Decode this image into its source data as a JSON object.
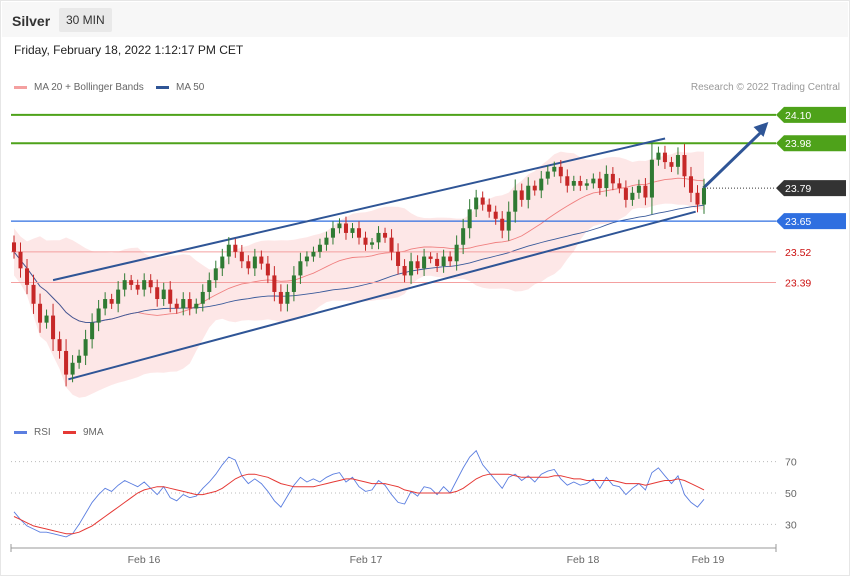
{
  "header": {
    "symbol": "Silver",
    "timeframe": "30 MIN",
    "datetime": "Friday, February 18, 2022 1:12:17 PM CET"
  },
  "legend": {
    "ma20": "MA 20 + Bollinger Bands",
    "ma50": "MA 50",
    "rsi": "RSI",
    "rsi_ma": "9MA"
  },
  "credit": "Research © 2022 Trading Central",
  "colors": {
    "bollinger_fill": "#fde3e3",
    "ma20": "#f08080",
    "ma50": "#3a5a9a",
    "channel": "#2f5596",
    "resistance": "#4ea21a",
    "pivot": "#2f6fe0",
    "support": "#f4a0a0",
    "support_text": "#cc1111",
    "current": "#333333",
    "candle_up": "#2f7a33",
    "candle_down": "#c62828",
    "rsi": "#5b7ee0",
    "rsi_ma": "#e53935"
  },
  "chart_data": [
    {
      "type": "candlestick",
      "title": "Silver",
      "timeframe": "30 MIN",
      "x_tick_labels": [
        "Feb 16",
        "Feb 17",
        "Feb 18",
        "Feb 19"
      ],
      "ylim": [
        22.85,
        24.18
      ],
      "price_levels": [
        {
          "label": "24.10",
          "value": 24.1,
          "kind": "resistance"
        },
        {
          "label": "23.98",
          "value": 23.98,
          "kind": "resistance"
        },
        {
          "label": "23.79",
          "value": 23.79,
          "kind": "current"
        },
        {
          "label": "23.65",
          "value": 23.65,
          "kind": "pivot"
        },
        {
          "label": "23.52",
          "value": 23.52,
          "kind": "support"
        },
        {
          "label": "23.39",
          "value": 23.39,
          "kind": "support"
        }
      ],
      "channel": {
        "upper": [
          [
            0.055,
            23.4
          ],
          [
            0.855,
            24.0
          ]
        ],
        "lower": [
          [
            0.075,
            22.98
          ],
          [
            0.895,
            23.69
          ]
        ]
      },
      "projection": [
        [
          0.905,
          23.79
        ],
        [
          0.99,
          24.07
        ]
      ],
      "closes": [
        23.52,
        23.45,
        23.38,
        23.3,
        23.22,
        23.25,
        23.15,
        23.1,
        23.0,
        23.05,
        23.08,
        23.15,
        23.22,
        23.28,
        23.32,
        23.3,
        23.36,
        23.4,
        23.38,
        23.36,
        23.4,
        23.37,
        23.32,
        23.36,
        23.3,
        23.28,
        23.32,
        23.28,
        23.3,
        23.35,
        23.4,
        23.45,
        23.5,
        23.55,
        23.52,
        23.48,
        23.45,
        23.5,
        23.47,
        23.42,
        23.35,
        23.3,
        23.35,
        23.42,
        23.48,
        23.5,
        23.52,
        23.55,
        23.58,
        23.62,
        23.64,
        23.6,
        23.62,
        23.58,
        23.55,
        23.56,
        23.6,
        23.58,
        23.52,
        23.46,
        23.42,
        23.48,
        23.45,
        23.5,
        23.49,
        23.46,
        23.5,
        23.48,
        23.55,
        23.62,
        23.7,
        23.75,
        23.72,
        23.69,
        23.66,
        23.61,
        23.69,
        23.78,
        23.74,
        23.8,
        23.78,
        23.83,
        23.86,
        23.88,
        23.84,
        23.8,
        23.82,
        23.8,
        23.81,
        23.83,
        23.79,
        23.85,
        23.81,
        23.79,
        23.74,
        23.77,
        23.8,
        23.75,
        23.91,
        23.94,
        23.9,
        23.88,
        23.93,
        23.84,
        23.77,
        23.72,
        23.79
      ],
      "rsi": {
        "levels": [
          70,
          50,
          30
        ],
        "ylim": [
          20,
          80
        ],
        "values": [
          38,
          33,
          29,
          27,
          25,
          25,
          24,
          23,
          22,
          24,
          30,
          37,
          44,
          49,
          53,
          51,
          55,
          58,
          56,
          54,
          57,
          53,
          49,
          54,
          47,
          45,
          49,
          47,
          48,
          53,
          57,
          62,
          68,
          73,
          71,
          61,
          56,
          59,
          56,
          51,
          45,
          41,
          48,
          55,
          60,
          57,
          59,
          57,
          60,
          62,
          63,
          57,
          60,
          54,
          51,
          52,
          58,
          55,
          49,
          44,
          43,
          51,
          48,
          54,
          53,
          49,
          54,
          50,
          58,
          66,
          73,
          77,
          68,
          63,
          58,
          53,
          60,
          62,
          58,
          61,
          57,
          62,
          64,
          65,
          59,
          55,
          57,
          55,
          56,
          59,
          53,
          60,
          55,
          54,
          49,
          53,
          56,
          52,
          63,
          66,
          61,
          56,
          61,
          49,
          44,
          41,
          46
        ],
        "ma": [
          35,
          33,
          31,
          29,
          28,
          27,
          26,
          25,
          24,
          24,
          25,
          27,
          29,
          32,
          35,
          38,
          41,
          44,
          47,
          50,
          52,
          53,
          54,
          54,
          53,
          52,
          51,
          50,
          49,
          49,
          50,
          51,
          53,
          56,
          59,
          61,
          62,
          62,
          61,
          60,
          58,
          56,
          55,
          54,
          54,
          54,
          54,
          55,
          56,
          57,
          58,
          59,
          59,
          58,
          57,
          56,
          56,
          56,
          55,
          54,
          52,
          51,
          50,
          50,
          50,
          50,
          50,
          50,
          51,
          53,
          56,
          59,
          61,
          62,
          62,
          62,
          62,
          61,
          60,
          60,
          60,
          60,
          60,
          61,
          61,
          60,
          59,
          59,
          58,
          58,
          58,
          58,
          58,
          57,
          56,
          56,
          56,
          55,
          56,
          57,
          58,
          58,
          59,
          58,
          56,
          54,
          52
        ]
      }
    }
  ]
}
